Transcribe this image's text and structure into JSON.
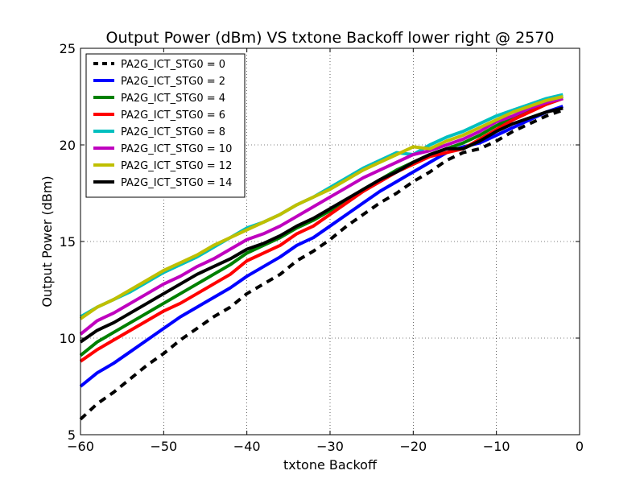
{
  "chart_data": {
    "type": "line",
    "title": "Output Power (dBm) VS txtone Backoff lower right @ 2570",
    "xlabel": "txtone Backoff",
    "ylabel": "Output Power (dBm)",
    "xlim": [
      -60,
      0
    ],
    "ylim": [
      5,
      25
    ],
    "xticks": [
      -60,
      -50,
      -40,
      -30,
      -20,
      -10,
      0
    ],
    "yticks": [
      5,
      10,
      15,
      20,
      25
    ],
    "xtick_labels": [
      "−60",
      "−50",
      "−40",
      "−30",
      "−20",
      "−10",
      "0"
    ],
    "ytick_labels": [
      "5",
      "10",
      "15",
      "20",
      "25"
    ],
    "grid": true,
    "legend_position": "top-left",
    "x": [
      -60,
      -58,
      -56,
      -54,
      -52,
      -50,
      -48,
      -46,
      -44,
      -42,
      -40,
      -38,
      -36,
      -34,
      -32,
      -30,
      -28,
      -26,
      -24,
      -22,
      -20,
      -18,
      -16,
      -14,
      -12,
      -10,
      -8,
      -6,
      -4,
      -2
    ],
    "series": [
      {
        "name": "PA2G_ICT_STG0 = 0",
        "color": "#000000",
        "dashed": true,
        "values": [
          5.8,
          6.6,
          7.2,
          7.9,
          8.6,
          9.2,
          9.9,
          10.5,
          11.1,
          11.6,
          12.3,
          12.8,
          13.3,
          14.0,
          14.5,
          15.1,
          15.8,
          16.4,
          17.0,
          17.5,
          18.1,
          18.6,
          19.2,
          19.6,
          19.8,
          20.2,
          20.7,
          21.1,
          21.5,
          21.8
        ]
      },
      {
        "name": "PA2G_ICT_STG0 = 2",
        "color": "#0000ff",
        "dashed": false,
        "values": [
          7.5,
          8.2,
          8.7,
          9.3,
          9.9,
          10.5,
          11.1,
          11.6,
          12.1,
          12.6,
          13.2,
          13.7,
          14.2,
          14.8,
          15.2,
          15.8,
          16.4,
          17.0,
          17.6,
          18.1,
          18.6,
          19.1,
          19.6,
          19.9,
          20.1,
          20.5,
          20.9,
          21.3,
          21.7,
          22.0
        ]
      },
      {
        "name": "PA2G_ICT_STG0 = 4",
        "color": "#008000",
        "dashed": false,
        "values": [
          9.1,
          9.8,
          10.3,
          10.8,
          11.3,
          11.8,
          12.3,
          12.8,
          13.3,
          13.8,
          14.4,
          14.8,
          15.2,
          15.7,
          16.1,
          16.6,
          17.1,
          17.7,
          18.2,
          18.7,
          19.1,
          19.5,
          19.8,
          20.1,
          20.5,
          21.0,
          21.4,
          21.8,
          22.2,
          22.5
        ]
      },
      {
        "name": "PA2G_ICT_STG0 = 6",
        "color": "#ff0000",
        "dashed": false,
        "values": [
          8.8,
          9.4,
          9.9,
          10.4,
          10.9,
          11.4,
          11.8,
          12.3,
          12.8,
          13.3,
          14.0,
          14.4,
          14.8,
          15.4,
          15.8,
          16.4,
          17.0,
          17.6,
          18.1,
          18.6,
          19.0,
          19.4,
          19.6,
          19.8,
          20.3,
          20.8,
          21.3,
          21.7,
          22.1,
          22.4
        ]
      },
      {
        "name": "PA2G_ICT_STG0 = 8",
        "color": "#00bfbf",
        "dashed": false,
        "values": [
          11.1,
          11.6,
          12.0,
          12.4,
          12.9,
          13.4,
          13.8,
          14.2,
          14.7,
          15.2,
          15.7,
          16.0,
          16.4,
          16.9,
          17.3,
          17.8,
          18.3,
          18.8,
          19.2,
          19.6,
          19.5,
          20.0,
          20.4,
          20.7,
          21.1,
          21.5,
          21.8,
          22.1,
          22.4,
          22.6
        ]
      },
      {
        "name": "PA2G_ICT_STG0 = 10",
        "color": "#bf00bf",
        "dashed": false,
        "values": [
          10.2,
          10.9,
          11.3,
          11.8,
          12.3,
          12.8,
          13.2,
          13.7,
          14.1,
          14.6,
          15.1,
          15.4,
          15.8,
          16.3,
          16.8,
          17.3,
          17.8,
          18.3,
          18.7,
          19.1,
          19.5,
          19.7,
          20.0,
          20.3,
          20.7,
          21.2,
          21.5,
          21.9,
          22.2,
          22.4
        ]
      },
      {
        "name": "PA2G_ICT_STG0 = 12",
        "color": "#bfbf00",
        "dashed": false,
        "values": [
          11.0,
          11.6,
          12.0,
          12.5,
          13.0,
          13.5,
          13.9,
          14.3,
          14.8,
          15.2,
          15.6,
          16.0,
          16.4,
          16.9,
          17.3,
          17.7,
          18.2,
          18.7,
          19.1,
          19.5,
          19.9,
          19.8,
          20.2,
          20.5,
          20.9,
          21.3,
          21.7,
          22.0,
          22.3,
          22.5
        ]
      },
      {
        "name": "PA2G_ICT_STG0 = 14",
        "color": "#000000",
        "dashed": false,
        "values": [
          9.8,
          10.4,
          10.8,
          11.3,
          11.8,
          12.3,
          12.8,
          13.3,
          13.7,
          14.1,
          14.6,
          14.9,
          15.3,
          15.8,
          16.2,
          16.7,
          17.2,
          17.7,
          18.2,
          18.6,
          19.1,
          19.5,
          19.8,
          19.8,
          20.2,
          20.7,
          21.1,
          21.4,
          21.7,
          21.9
        ]
      }
    ]
  }
}
